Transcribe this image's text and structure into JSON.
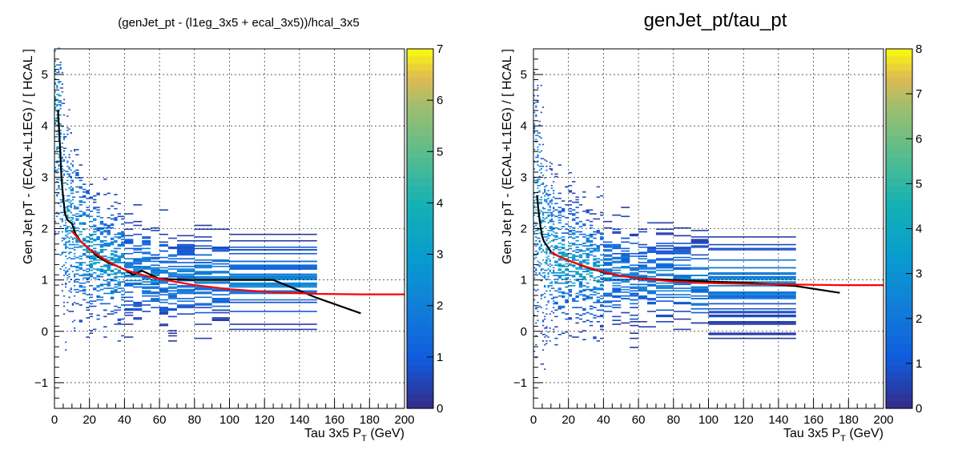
{
  "chart_data": [
    {
      "type": "heatmap",
      "title": "(genJet_pt - (l1eg_3x5 + ecal_3x5))/hcal_3x5",
      "xlabel": "Tau 3x5 P_T (GeV)",
      "xlabel_main": "Tau 3x5 P",
      "xlabel_sub": "T",
      "xlabel_unit": " (GeV)",
      "ylabel": "Gen Jet pT - (ECAL+L1EG) / [ HCAL ]",
      "xlim": [
        0,
        200
      ],
      "ylim": [
        -1.5,
        5.5
      ],
      "x_ticks": [
        0,
        20,
        40,
        60,
        80,
        100,
        120,
        140,
        160,
        180,
        200
      ],
      "y_ticks": [
        -1,
        0,
        1,
        2,
        3,
        4,
        5
      ],
      "y_tick_labels": [
        "−1",
        "0",
        "1",
        "2",
        "3",
        "4",
        "5"
      ],
      "z_range": [
        0,
        7
      ],
      "z_ticks": [
        0,
        1,
        2,
        3,
        4,
        5,
        6,
        7
      ],
      "grid": true,
      "palette": "ROOT kBird (blue to yellow)",
      "series": [
        {
          "name": "",
          "color": "#000000",
          "x": [
            2,
            3,
            4,
            5,
            6,
            7,
            8,
            10,
            12,
            15,
            20,
            25,
            30,
            35,
            40,
            45,
            50,
            55,
            60,
            80,
            100,
            125,
            150,
            175
          ],
          "y": [
            4.3,
            3.7,
            3.0,
            2.6,
            2.3,
            2.2,
            2.15,
            2.1,
            1.9,
            1.75,
            1.6,
            1.45,
            1.35,
            1.28,
            1.2,
            1.1,
            1.18,
            1.1,
            1.02,
            1.0,
            1.0,
            1.0,
            0.65,
            0.35
          ]
        },
        {
          "name": "",
          "color": "#ff0000",
          "x": [
            10,
            15,
            20,
            30,
            40,
            50,
            60,
            80,
            100,
            125,
            150,
            175,
            200
          ],
          "y": [
            1.95,
            1.75,
            1.6,
            1.37,
            1.2,
            1.1,
            1.02,
            0.9,
            0.82,
            0.76,
            0.73,
            0.72,
            0.72
          ]
        }
      ]
    },
    {
      "type": "heatmap",
      "title": "genJet_pt/tau_pt",
      "xlabel": "Tau 3x5 P_T (GeV)",
      "xlabel_main": "Tau 3x5 P",
      "xlabel_sub": "T",
      "xlabel_unit": " (GeV)",
      "ylabel": "Gen Jet pT - (ECAL+L1EG) / [ HCAL ]",
      "xlim": [
        0,
        200
      ],
      "ylim": [
        -1.5,
        5.5
      ],
      "x_ticks": [
        0,
        20,
        40,
        60,
        80,
        100,
        120,
        140,
        160,
        180,
        200
      ],
      "y_ticks": [
        -1,
        0,
        1,
        2,
        3,
        4,
        5
      ],
      "y_tick_labels": [
        "−1",
        "0",
        "1",
        "2",
        "3",
        "4",
        "5"
      ],
      "z_range": [
        0,
        8
      ],
      "z_ticks": [
        0,
        1,
        2,
        3,
        4,
        5,
        6,
        7,
        8
      ],
      "grid": true,
      "palette": "ROOT kBird (blue to yellow)",
      "series": [
        {
          "name": "",
          "color": "#000000",
          "x": [
            2,
            3,
            4,
            5,
            6,
            8,
            10,
            12,
            15,
            20,
            30,
            40,
            50,
            60,
            80,
            100,
            125,
            150,
            175
          ],
          "y": [
            2.65,
            2.3,
            2.05,
            1.85,
            1.75,
            1.65,
            1.55,
            1.5,
            1.45,
            1.38,
            1.25,
            1.15,
            1.08,
            1.03,
            1.0,
            0.97,
            0.94,
            0.88,
            0.75
          ]
        },
        {
          "name": "",
          "color": "#ff0000",
          "x": [
            10,
            15,
            20,
            30,
            40,
            50,
            60,
            80,
            100,
            125,
            150,
            175,
            200
          ],
          "y": [
            1.55,
            1.45,
            1.38,
            1.26,
            1.16,
            1.08,
            1.03,
            0.97,
            0.94,
            0.92,
            0.91,
            0.9,
            0.9
          ]
        }
      ]
    }
  ]
}
